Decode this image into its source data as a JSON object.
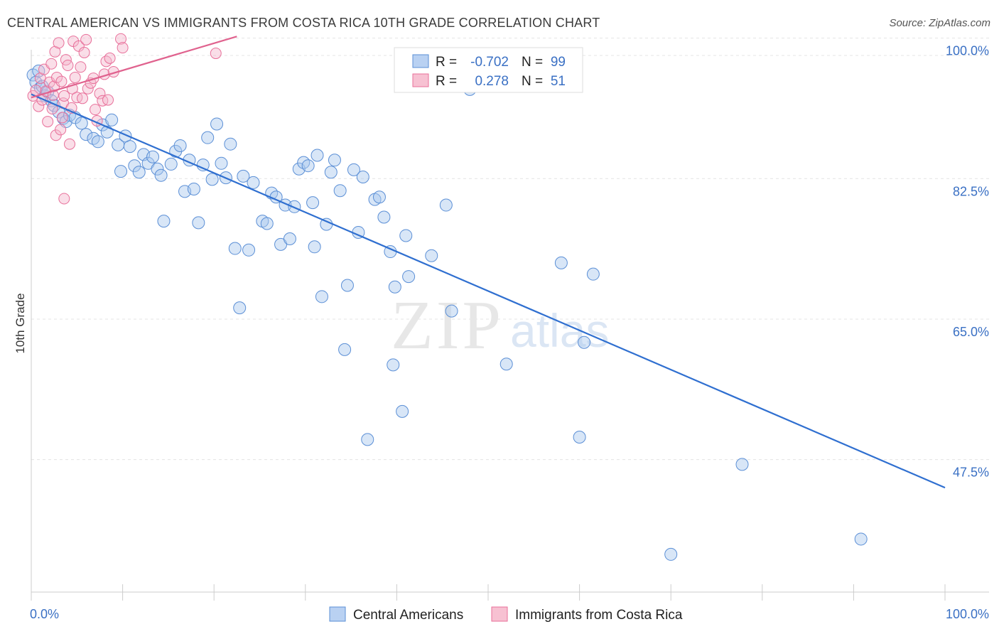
{
  "title": "CENTRAL AMERICAN VS IMMIGRANTS FROM COSTA RICA 10TH GRADE CORRELATION CHART",
  "source": "Source: ZipAtlas.com",
  "watermark": {
    "zip": "ZIP",
    "atlas": "atlas"
  },
  "colors": {
    "blue": "#5b8fd6",
    "blue_fill": "#a9c7ee",
    "pink": "#e8709a",
    "pink_fill": "#f5b6cb",
    "label": "#3a70c4"
  },
  "legend": {
    "row1": {
      "r_label": "R =",
      "r_value": "-0.702",
      "n_label": "N =",
      "n_value": "99"
    },
    "row2": {
      "r_label": "R =",
      "r_value": "0.278",
      "n_label": "N =",
      "n_value": "51"
    }
  },
  "bottom_legend": {
    "blue": "Central Americans",
    "pink": "Immigrants from Costa Rica"
  },
  "chart_data": {
    "type": "scatter",
    "title": "CENTRAL AMERICAN VS IMMIGRANTS FROM COSTA RICA 10TH GRADE CORRELATION CHART",
    "xlabel": "",
    "ylabel": "10th Grade",
    "xlim": [
      0,
      100
    ],
    "ylim": [
      31,
      102
    ],
    "x_tick_labels": [
      "0.0%",
      "100.0%"
    ],
    "y_ticks": [
      47.5,
      65.0,
      82.5,
      100.0
    ],
    "y_tick_labels": [
      "47.5%",
      "65.0%",
      "82.5%",
      "100.0%"
    ],
    "grid": true,
    "series": [
      {
        "name": "Central Americans",
        "color": "#5b8fd6",
        "trend": {
          "x": [
            0,
            100
          ],
          "y": [
            93.0,
            44.0
          ]
        },
        "points": [
          [
            0.2,
            95.4
          ],
          [
            0.5,
            94.5
          ],
          [
            0.8,
            95.9
          ],
          [
            1.0,
            93.8
          ],
          [
            1.2,
            94.0
          ],
          [
            1.5,
            92.8
          ],
          [
            1.8,
            93.3
          ],
          [
            2.2,
            92.2
          ],
          [
            2.5,
            91.6
          ],
          [
            3.0,
            90.8
          ],
          [
            3.5,
            90.0
          ],
          [
            3.8,
            89.6
          ],
          [
            4.2,
            90.4
          ],
          [
            4.8,
            90.1
          ],
          [
            5.5,
            89.4
          ],
          [
            6.0,
            88.0
          ],
          [
            6.8,
            87.5
          ],
          [
            7.3,
            87.1
          ],
          [
            7.8,
            89.2
          ],
          [
            8.3,
            88.3
          ],
          [
            8.8,
            89.8
          ],
          [
            9.5,
            86.7
          ],
          [
            9.8,
            83.4
          ],
          [
            10.3,
            87.8
          ],
          [
            10.8,
            86.5
          ],
          [
            11.3,
            84.1
          ],
          [
            11.8,
            83.3
          ],
          [
            12.3,
            85.5
          ],
          [
            12.8,
            84.4
          ],
          [
            13.3,
            85.2
          ],
          [
            13.8,
            83.7
          ],
          [
            14.2,
            82.9
          ],
          [
            14.5,
            77.2
          ],
          [
            15.3,
            84.3
          ],
          [
            15.8,
            85.9
          ],
          [
            16.3,
            86.6
          ],
          [
            16.8,
            80.9
          ],
          [
            17.3,
            84.8
          ],
          [
            17.8,
            81.2
          ],
          [
            18.3,
            77.0
          ],
          [
            18.8,
            84.2
          ],
          [
            19.3,
            87.6
          ],
          [
            19.8,
            82.4
          ],
          [
            20.3,
            89.3
          ],
          [
            20.8,
            84.4
          ],
          [
            21.3,
            82.6
          ],
          [
            21.8,
            86.8
          ],
          [
            22.3,
            73.8
          ],
          [
            22.8,
            66.4
          ],
          [
            23.2,
            82.8
          ],
          [
            23.8,
            73.6
          ],
          [
            24.3,
            82.0
          ],
          [
            25.3,
            77.2
          ],
          [
            25.8,
            76.9
          ],
          [
            26.3,
            80.7
          ],
          [
            26.8,
            80.2
          ],
          [
            27.3,
            74.3
          ],
          [
            27.8,
            79.2
          ],
          [
            28.3,
            75.0
          ],
          [
            28.8,
            79.0
          ],
          [
            29.3,
            83.7
          ],
          [
            29.8,
            84.5
          ],
          [
            30.3,
            84.1
          ],
          [
            30.8,
            79.5
          ],
          [
            31.0,
            74.0
          ],
          [
            31.3,
            85.4
          ],
          [
            31.8,
            67.8
          ],
          [
            32.3,
            76.8
          ],
          [
            32.8,
            83.3
          ],
          [
            33.2,
            84.8
          ],
          [
            33.8,
            81.0
          ],
          [
            34.3,
            61.2
          ],
          [
            34.6,
            69.2
          ],
          [
            35.3,
            83.6
          ],
          [
            35.8,
            75.8
          ],
          [
            36.3,
            82.7
          ],
          [
            36.8,
            50.0
          ],
          [
            37.6,
            79.9
          ],
          [
            38.1,
            80.2
          ],
          [
            38.6,
            77.7
          ],
          [
            39.3,
            73.4
          ],
          [
            39.6,
            59.3
          ],
          [
            39.8,
            69.0
          ],
          [
            40.6,
            53.5
          ],
          [
            41.0,
            75.4
          ],
          [
            41.3,
            70.3
          ],
          [
            43.8,
            72.9
          ],
          [
            44.0,
            95.5
          ],
          [
            45.4,
            79.2
          ],
          [
            46.0,
            66.0
          ],
          [
            48.0,
            93.6
          ],
          [
            52.0,
            59.4
          ],
          [
            58.0,
            72.0
          ],
          [
            60.0,
            50.3
          ],
          [
            60.5,
            62.1
          ],
          [
            61.5,
            70.6
          ],
          [
            77.8,
            46.9
          ],
          [
            70.0,
            35.7
          ],
          [
            90.8,
            37.6
          ]
        ]
      },
      {
        "name": "Immigrants from Costa Rica",
        "color": "#e8709a",
        "trend": {
          "x": [
            0,
            22.5
          ],
          "y": [
            92.6,
            100.2
          ]
        },
        "points": [
          [
            0.2,
            92.8
          ],
          [
            0.5,
            93.5
          ],
          [
            0.8,
            91.5
          ],
          [
            1.0,
            95.0
          ],
          [
            1.2,
            92.3
          ],
          [
            1.4,
            96.1
          ],
          [
            1.6,
            93.4
          ],
          [
            1.8,
            89.6
          ],
          [
            2.0,
            94.5
          ],
          [
            2.2,
            96.8
          ],
          [
            2.3,
            91.2
          ],
          [
            2.4,
            92.9
          ],
          [
            2.5,
            94.0
          ],
          [
            2.6,
            98.3
          ],
          [
            2.7,
            87.9
          ],
          [
            2.8,
            95.1
          ],
          [
            3.0,
            99.4
          ],
          [
            3.2,
            88.6
          ],
          [
            3.3,
            94.6
          ],
          [
            3.4,
            90.1
          ],
          [
            3.5,
            91.9
          ],
          [
            3.6,
            92.8
          ],
          [
            3.8,
            97.3
          ],
          [
            4.0,
            96.6
          ],
          [
            4.2,
            86.8
          ],
          [
            4.4,
            91.3
          ],
          [
            4.5,
            93.7
          ],
          [
            4.6,
            99.6
          ],
          [
            4.8,
            95.1
          ],
          [
            5.0,
            92.6
          ],
          [
            5.2,
            99.0
          ],
          [
            5.4,
            96.4
          ],
          [
            5.6,
            92.5
          ],
          [
            5.8,
            98.2
          ],
          [
            6.0,
            99.8
          ],
          [
            6.2,
            93.7
          ],
          [
            6.5,
            94.4
          ],
          [
            6.8,
            95.0
          ],
          [
            7.0,
            91.1
          ],
          [
            7.2,
            89.7
          ],
          [
            7.5,
            93.1
          ],
          [
            7.8,
            92.2
          ],
          [
            8.0,
            95.5
          ],
          [
            8.2,
            97.1
          ],
          [
            8.4,
            92.3
          ],
          [
            8.6,
            97.5
          ],
          [
            9.0,
            95.8
          ],
          [
            9.8,
            99.9
          ],
          [
            10.0,
            98.8
          ],
          [
            20.2,
            98.1
          ],
          [
            3.6,
            80.0
          ]
        ]
      }
    ]
  }
}
